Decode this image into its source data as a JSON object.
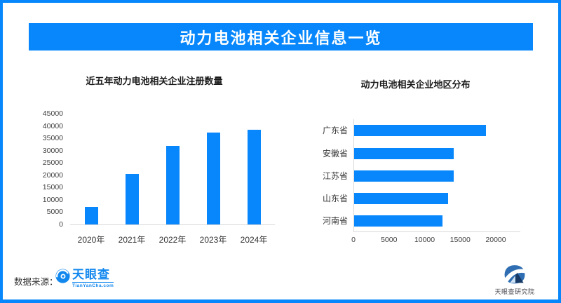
{
  "colors": {
    "accent": "#0787FB",
    "bar_fill": "#0886FB",
    "axis_line": "#D9D9D9",
    "logo_blue": "#1287EE",
    "institute_blue": "#2F6EB3",
    "institute_navy": "#173A66"
  },
  "banner": {
    "title": "动力电池相关企业信息一览"
  },
  "chart_data": [
    {
      "type": "bar",
      "orientation": "vertical",
      "title": "近五年动力电池相关企业注册数量",
      "categories": [
        "2020年",
        "2021年",
        "2022年",
        "2023年",
        "2024年"
      ],
      "values": [
        7000,
        20500,
        32000,
        37500,
        38500
      ],
      "ylim": [
        0,
        45000
      ],
      "yticks": [
        0,
        5000,
        10000,
        15000,
        20000,
        25000,
        30000,
        35000,
        40000,
        45000
      ],
      "grid": false,
      "legend": "none"
    },
    {
      "type": "bar",
      "orientation": "horizontal",
      "title": "动力电池相关企业地区分布",
      "categories": [
        "广东省",
        "安徽省",
        "江苏省",
        "山东省",
        "河南省"
      ],
      "values": [
        18500,
        14000,
        14000,
        13200,
        12400
      ],
      "xlim": [
        0,
        20000
      ],
      "xticks": [
        0,
        5000,
        10000,
        15000,
        20000
      ],
      "grid": false,
      "legend": "none"
    }
  ],
  "footer": {
    "source_label": "数据来源：",
    "tyc_logo_text": "天眼查",
    "tyc_logo_subtext": "TianYanCha.com",
    "institute_name": "天眼查研究院"
  }
}
